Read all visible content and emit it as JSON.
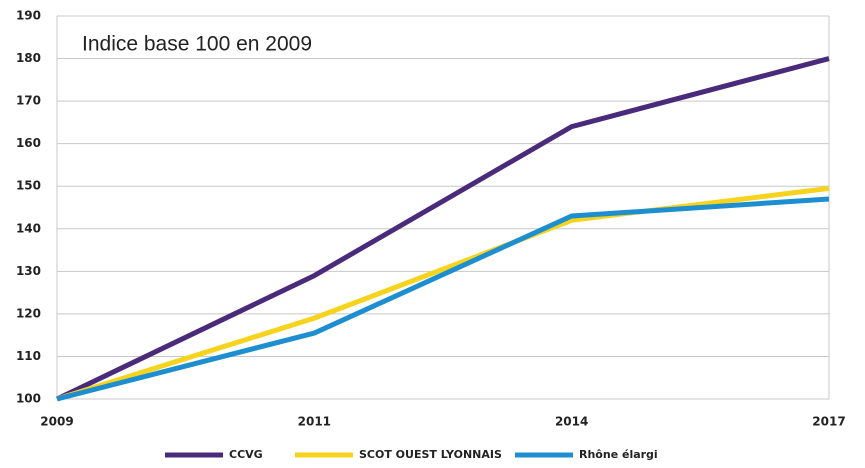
{
  "chart_data": {
    "type": "line",
    "annotation": "Indice base 100 en 2009",
    "categories": [
      "2009",
      "2011",
      "2014",
      "2017"
    ],
    "series": [
      {
        "name": "CCVG",
        "color": "#4a2a7a",
        "values": [
          100,
          129,
          164,
          180
        ]
      },
      {
        "name": "SCOT OUEST LYONNAIS",
        "color": "#f6d31c",
        "values": [
          100,
          119,
          142,
          149.5
        ]
      },
      {
        "name": "Rhône élargi",
        "color": "#1d8fd0",
        "values": [
          100,
          115.5,
          143,
          147
        ]
      }
    ],
    "ylim": [
      100,
      190
    ],
    "yticks": [
      100,
      110,
      120,
      130,
      140,
      150,
      160,
      170,
      180,
      190
    ],
    "grid": true,
    "legend": "bottom"
  }
}
